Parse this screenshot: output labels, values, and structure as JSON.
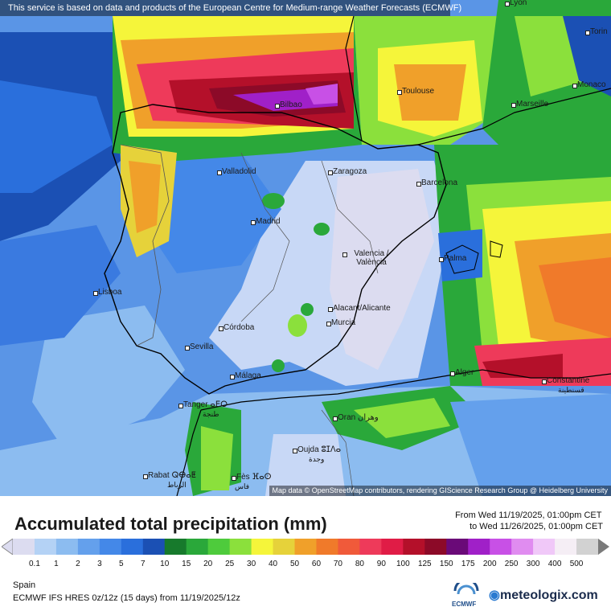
{
  "banner": "This service is based on data and products of the European Centre for Medium-range Weather Forecasts (ECMWF)",
  "attribution": "Map data © OpenStreetMap contributors, rendering GIScience Research Group @ Heidelberg University",
  "cities": {
    "lyon": "Lyon",
    "torino": "Torin",
    "monaco": "Monaco",
    "toulouse": "Toulouse",
    "marseille": "Marseille",
    "bilbao": "Bilbao",
    "valladolid": "Valladolid",
    "zaragoza": "Zaragoza",
    "barcelona": "Barcelona",
    "madrid": "Madrid",
    "valencia": "Valencia / València",
    "palma": "Palma",
    "lisboa": "Lisboa",
    "alacant": "Alacant/Alicante",
    "murcia": "Murcia",
    "cordoba": "Córdoba",
    "sevilla": "Sevilla",
    "malaga": "Málaga",
    "alger": "Alger",
    "constantine": "Constantine",
    "constantine_ar": "قسنطينة",
    "tanger": "Tanger ⴰⴹⵔ",
    "tanger_ar": "طنجة",
    "oran": "Oran وهران",
    "oujda": "Oujda ⵓⵊⴷⴰ",
    "oujda_ar": "وجدة",
    "rabat": "Rabat ⵕⴱⴰⵟ",
    "rabat_ar": "الرباط",
    "fes": "Fès ⴼⴰⵙ",
    "fes_ar": "فاس"
  },
  "legend": {
    "title": "Accumulated total precipitation (mm)",
    "from": "From Wed 11/19/2025, 01:00pm CET",
    "to": "to Wed 11/26/2025, 01:00pm CET",
    "classes": [
      "0.1",
      "1",
      "2",
      "3",
      "5",
      "7",
      "10",
      "15",
      "20",
      "25",
      "30",
      "40",
      "50",
      "60",
      "70",
      "80",
      "90",
      "100",
      "125",
      "150",
      "175",
      "200",
      "250",
      "300",
      "400",
      "500"
    ],
    "colors": [
      "#dcdcf0",
      "#b4d2f5",
      "#8cbcf0",
      "#64a0ec",
      "#4488e8",
      "#2a6fdc",
      "#1b50b4",
      "#177a2c",
      "#2aa83a",
      "#4ecb3c",
      "#8be03c",
      "#f5f53a",
      "#e6d23a",
      "#f0a02a",
      "#f07a2a",
      "#f05a3a",
      "#ee3a5a",
      "#e01c46",
      "#b4102a",
      "#8c0a28",
      "#6a0a78",
      "#a020c8",
      "#c850e6",
      "#e08cf0",
      "#f0c8f8",
      "#f5eef5",
      "#d2d2d2"
    ]
  },
  "region": "Spain",
  "model": "ECMWF IFS HRES 0z/12z (15 days) from  11/19/2025/12z",
  "brand": {
    "ecmwf": "ECMWF",
    "meteologix": "meteologix.com"
  }
}
